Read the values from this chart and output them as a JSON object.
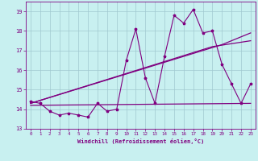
{
  "xlabel": "Windchill (Refroidissement éolien,°C)",
  "background_color": "#c8f0f0",
  "line_color": "#800080",
  "grid_color": "#a0c8d0",
  "ylim": [
    13,
    19.5
  ],
  "xlim": [
    -0.5,
    23.5
  ],
  "yticks": [
    13,
    14,
    15,
    16,
    17,
    18,
    19
  ],
  "xticks": [
    0,
    1,
    2,
    3,
    4,
    5,
    6,
    7,
    8,
    9,
    10,
    11,
    12,
    13,
    14,
    15,
    16,
    17,
    18,
    19,
    20,
    21,
    22,
    23
  ],
  "s1_x": [
    0,
    1,
    2,
    3,
    4,
    5,
    6,
    7,
    8,
    9,
    10,
    11,
    12,
    13,
    14,
    15,
    16,
    17,
    18,
    19,
    20,
    21,
    22,
    23
  ],
  "s1_y": [
    14.4,
    14.3,
    13.9,
    13.7,
    13.8,
    13.7,
    13.6,
    14.3,
    13.9,
    14.0,
    16.5,
    18.1,
    15.6,
    14.3,
    16.7,
    18.8,
    18.4,
    19.1,
    17.9,
    18.0,
    16.3,
    15.3,
    14.3,
    15.3
  ],
  "line1_x": [
    0,
    23
  ],
  "line1_y": [
    14.2,
    14.3
  ],
  "line2_x": [
    0,
    20,
    23
  ],
  "line2_y": [
    14.3,
    17.3,
    17.9
  ],
  "line3_x": [
    0,
    19,
    23
  ],
  "line3_y": [
    14.3,
    17.2,
    17.5
  ]
}
